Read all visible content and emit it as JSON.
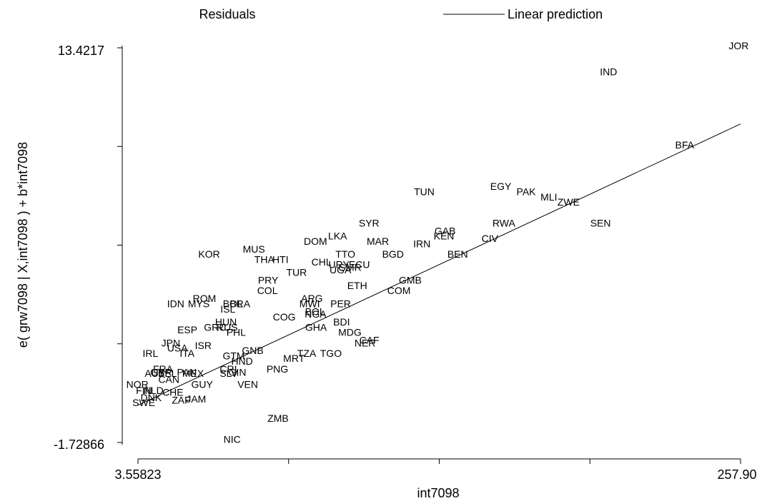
{
  "chart_data": {
    "type": "scatter",
    "legend": {
      "position": "top",
      "entries": [
        {
          "label": "Residuals",
          "marker": "text"
        },
        {
          "label": "Linear prediction",
          "marker": "line"
        }
      ]
    },
    "xlabel": "int7098",
    "ylabel": "e( grw7098 | X,int7098 ) + b*int7098",
    "xlim": [
      3.55823,
      257.909
    ],
    "ylim": [
      -1.72866,
      13.4217
    ],
    "x_tick_labels": [
      "3.55823",
      "257.909"
    ],
    "y_tick_labels": [
      "13.4217",
      "-1.72866"
    ],
    "x_minor_ticks": [
      67.146,
      130.734,
      194.321
    ],
    "y_minor_ticks": [
      9.634,
      5.847,
      2.059
    ],
    "fit_line": {
      "x": [
        3.55823,
        257.909
      ],
      "y": [
        -0.3,
        10.5
      ]
    },
    "grid": false,
    "points": [
      {
        "label": "JOR",
        "x": 257.1,
        "y": 13.5
      },
      {
        "label": "IND",
        "x": 202.2,
        "y": 12.5
      },
      {
        "label": "BFA",
        "x": 234.3,
        "y": 9.7
      },
      {
        "label": "EGY",
        "x": 156.7,
        "y": 8.1
      },
      {
        "label": "PAK",
        "x": 167.4,
        "y": 7.9
      },
      {
        "label": "MLI",
        "x": 177.0,
        "y": 7.7
      },
      {
        "label": "TUN",
        "x": 124.4,
        "y": 7.9
      },
      {
        "label": "ZWE",
        "x": 185.3,
        "y": 7.5
      },
      {
        "label": "SYR",
        "x": 101.1,
        "y": 6.7
      },
      {
        "label": "RWA",
        "x": 158.0,
        "y": 6.7
      },
      {
        "label": "SEN",
        "x": 198.8,
        "y": 6.7
      },
      {
        "label": "GAB",
        "x": 133.2,
        "y": 6.4
      },
      {
        "label": "KEN",
        "x": 132.7,
        "y": 6.2
      },
      {
        "label": "LKA",
        "x": 87.8,
        "y": 6.2
      },
      {
        "label": "CIV",
        "x": 152.1,
        "y": 6.1
      },
      {
        "label": "DOM",
        "x": 78.5,
        "y": 6.0
      },
      {
        "label": "MAR",
        "x": 104.8,
        "y": 6.0
      },
      {
        "label": "IRN",
        "x": 123.4,
        "y": 5.9
      },
      {
        "label": "MUS",
        "x": 52.5,
        "y": 5.7
      },
      {
        "label": "TTO",
        "x": 91.1,
        "y": 5.5
      },
      {
        "label": "BGD",
        "x": 111.2,
        "y": 5.5
      },
      {
        "label": "BEN",
        "x": 138.5,
        "y": 5.5
      },
      {
        "label": "KOR",
        "x": 33.6,
        "y": 5.5
      },
      {
        "label": "THA",
        "x": 56.9,
        "y": 5.3
      },
      {
        "label": "HTI",
        "x": 63.7,
        "y": 5.3
      },
      {
        "label": "CHL",
        "x": 81.0,
        "y": 5.2
      },
      {
        "label": "URY",
        "x": 88.4,
        "y": 5.1
      },
      {
        "label": "ECU",
        "x": 97.0,
        "y": 5.1
      },
      {
        "label": "GMR",
        "x": 93.0,
        "y": 5.0
      },
      {
        "label": "UGA",
        "x": 89.0,
        "y": 4.9
      },
      {
        "label": "TUR",
        "x": 70.5,
        "y": 4.8
      },
      {
        "label": "PRY",
        "x": 58.5,
        "y": 4.5
      },
      {
        "label": "GMB",
        "x": 118.5,
        "y": 4.5
      },
      {
        "label": "ETH",
        "x": 96.1,
        "y": 4.3
      },
      {
        "label": "COL",
        "x": 58.2,
        "y": 4.1
      },
      {
        "label": "COM",
        "x": 113.7,
        "y": 4.1
      },
      {
        "label": "ROM",
        "x": 31.6,
        "y": 3.8
      },
      {
        "label": "ARG",
        "x": 77.0,
        "y": 3.8
      },
      {
        "label": "IDN",
        "x": 19.5,
        "y": 3.6
      },
      {
        "label": "MYS",
        "x": 29.2,
        "y": 3.6
      },
      {
        "label": "BRA",
        "x": 46.6,
        "y": 3.6
      },
      {
        "label": "BOL",
        "x": 43.6,
        "y": 3.6
      },
      {
        "label": "PER",
        "x": 89.1,
        "y": 3.6
      },
      {
        "label": "MWI",
        "x": 76.0,
        "y": 3.6
      },
      {
        "label": "ISL",
        "x": 41.5,
        "y": 3.4
      },
      {
        "label": "BOL",
        "x": 78.3,
        "y": 3.3
      },
      {
        "label": "NGA",
        "x": 78.5,
        "y": 3.2
      },
      {
        "label": "COG",
        "x": 65.3,
        "y": 3.1
      },
      {
        "label": "HUN",
        "x": 40.7,
        "y": 2.9
      },
      {
        "label": "BDI",
        "x": 89.5,
        "y": 2.9
      },
      {
        "label": "GRC",
        "x": 36.1,
        "y": 2.7
      },
      {
        "label": "RUS",
        "x": 41.2,
        "y": 2.7
      },
      {
        "label": "GHA",
        "x": 78.7,
        "y": 2.7
      },
      {
        "label": "ESP",
        "x": 24.4,
        "y": 2.6
      },
      {
        "label": "MDG",
        "x": 93.0,
        "y": 2.5
      },
      {
        "label": "PHL",
        "x": 45.0,
        "y": 2.5
      },
      {
        "label": "CAF",
        "x": 101.2,
        "y": 2.2
      },
      {
        "label": "NER",
        "x": 99.4,
        "y": 2.1
      },
      {
        "label": "JPN",
        "x": 17.4,
        "y": 2.1
      },
      {
        "label": "ISR",
        "x": 31.1,
        "y": 2.0
      },
      {
        "label": "USA",
        "x": 20.2,
        "y": 1.9
      },
      {
        "label": "GNB",
        "x": 52.0,
        "y": 1.8
      },
      {
        "label": "ITA",
        "x": 24.3,
        "y": 1.7
      },
      {
        "label": "IRL",
        "x": 8.8,
        "y": 1.7
      },
      {
        "label": "TZA",
        "x": 74.8,
        "y": 1.7
      },
      {
        "label": "TGO",
        "x": 85.0,
        "y": 1.7
      },
      {
        "label": "GTM",
        "x": 44.0,
        "y": 1.6
      },
      {
        "label": "MRT",
        "x": 69.4,
        "y": 1.5
      },
      {
        "label": "HND",
        "x": 47.5,
        "y": 1.4
      },
      {
        "label": "CRI",
        "x": 41.7,
        "y": 1.1
      },
      {
        "label": "PNG",
        "x": 62.4,
        "y": 1.1
      },
      {
        "label": "FRA",
        "x": 14.1,
        "y": 1.1
      },
      {
        "label": "GBR",
        "x": 13.3,
        "y": 0.97
      },
      {
        "label": "PAN",
        "x": 24.2,
        "y": 0.97
      },
      {
        "label": "AUT",
        "x": 10.6,
        "y": 0.93
      },
      {
        "label": "BEL",
        "x": 16.0,
        "y": 0.93
      },
      {
        "label": "MEX",
        "x": 26.8,
        "y": 0.93
      },
      {
        "label": "SLV",
        "x": 41.9,
        "y": 0.93
      },
      {
        "label": "GIN",
        "x": 45.5,
        "y": 0.97
      },
      {
        "label": "CAN",
        "x": 16.6,
        "y": 0.7
      },
      {
        "label": "NOR",
        "x": 3.3,
        "y": 0.5
      },
      {
        "label": "VEN",
        "x": 49.9,
        "y": 0.5
      },
      {
        "label": "GUY",
        "x": 30.6,
        "y": 0.5
      },
      {
        "label": "FIN",
        "x": 6.1,
        "y": 0.27
      },
      {
        "label": "NLD",
        "x": 10.1,
        "y": 0.27
      },
      {
        "label": "CHE",
        "x": 18.3,
        "y": 0.2
      },
      {
        "label": "DNK",
        "x": 9.1,
        "y": 0.0
      },
      {
        "label": "JAM",
        "x": 28.1,
        "y": -0.06
      },
      {
        "label": "ZAF",
        "x": 21.8,
        "y": -0.1
      },
      {
        "label": "SWE",
        "x": 6.0,
        "y": -0.2
      },
      {
        "label": "ZMB",
        "x": 62.7,
        "y": -0.8
      },
      {
        "label": "NIC",
        "x": 43.3,
        "y": -1.6
      }
    ]
  }
}
